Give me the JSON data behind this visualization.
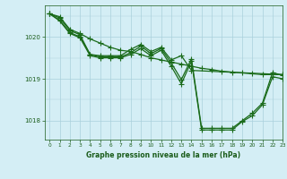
{
  "title": "Graphe pression niveau de la mer (hPa)",
  "bg_color": "#d4eef5",
  "grid_color_major": "#aad0dc",
  "line_color": "#1a6b1a",
  "text_color": "#1a5c1a",
  "xlim": [
    -0.5,
    23
  ],
  "ylim": [
    1017.55,
    1020.75
  ],
  "yticks": [
    1018,
    1019,
    1020
  ],
  "xticks": [
    0,
    1,
    2,
    3,
    4,
    5,
    6,
    7,
    8,
    9,
    10,
    11,
    12,
    13,
    14,
    15,
    16,
    17,
    18,
    19,
    20,
    21,
    22,
    23
  ],
  "series": [
    {
      "x": [
        0,
        1,
        2,
        3,
        4,
        5,
        6,
        7,
        8,
        9,
        10,
        11,
        12,
        13,
        14,
        15,
        16,
        17,
        18,
        19,
        20,
        21,
        22,
        23
      ],
      "y": [
        1020.55,
        1020.48,
        1020.18,
        1020.08,
        1019.95,
        1019.85,
        1019.75,
        1019.68,
        1019.65,
        1019.58,
        1019.5,
        1019.45,
        1019.4,
        1019.35,
        1019.3,
        1019.25,
        1019.22,
        1019.18,
        1019.16,
        1019.14,
        1019.12,
        1019.1,
        1019.1,
        1019.1
      ]
    },
    {
      "x": [
        0,
        1,
        2,
        3,
        4,
        5,
        6,
        7,
        8,
        9,
        10,
        11,
        12,
        13,
        14,
        23
      ],
      "y": [
        1020.55,
        1020.45,
        1020.15,
        1020.05,
        1019.58,
        1019.55,
        1019.55,
        1019.55,
        1019.7,
        1019.82,
        1019.65,
        1019.75,
        1019.45,
        1019.55,
        1019.2,
        1019.1
      ]
    },
    {
      "x": [
        0,
        1,
        2,
        3,
        4,
        5,
        6,
        7,
        8,
        9,
        10,
        11,
        12,
        13,
        14,
        15,
        16,
        17,
        18,
        19,
        20,
        21,
        22,
        23
      ],
      "y": [
        1020.55,
        1020.4,
        1020.1,
        1020.0,
        1019.58,
        1019.52,
        1019.52,
        1019.52,
        1019.62,
        1019.78,
        1019.6,
        1019.72,
        1019.38,
        1018.98,
        1019.48,
        1017.82,
        1017.82,
        1017.82,
        1017.82,
        1018.0,
        1018.18,
        1018.42,
        1019.15,
        1019.08
      ]
    },
    {
      "x": [
        0,
        1,
        2,
        3,
        4,
        5,
        6,
        7,
        8,
        9,
        10,
        11,
        12,
        13,
        14,
        15,
        16,
        17,
        18,
        19,
        20,
        21,
        22,
        23
      ],
      "y": [
        1020.55,
        1020.38,
        1020.08,
        1019.98,
        1019.55,
        1019.5,
        1019.5,
        1019.5,
        1019.58,
        1019.72,
        1019.55,
        1019.68,
        1019.3,
        1018.88,
        1019.42,
        1017.78,
        1017.78,
        1017.78,
        1017.78,
        1017.98,
        1018.12,
        1018.38,
        1019.05,
        1019.0
      ]
    }
  ],
  "marker": "+",
  "markersize": 4,
  "linewidth": 0.9
}
